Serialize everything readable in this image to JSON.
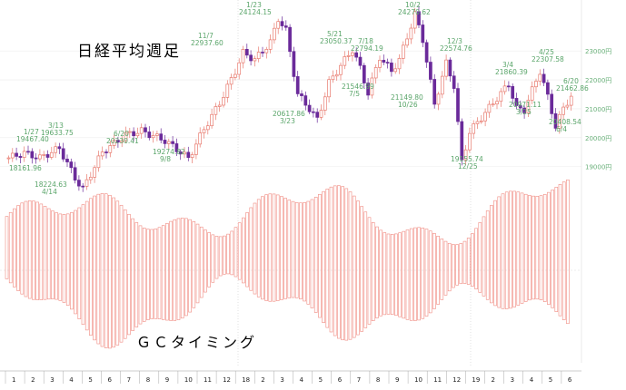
{
  "title": "日経平均週足",
  "subtitle": "ＧＣタイミング",
  "colors": {
    "up_candle": "#e87a6e",
    "down_candle": "#6a2a9a",
    "label": "#5aa56a",
    "osc_bar": "#f08a80",
    "grid": "#e8e8e8",
    "axis": "#999999"
  },
  "chart_data": {
    "type": "candlestick+bar",
    "title": "日経平均週足",
    "lower_panel_title": "ＧＣタイミング",
    "y_axis_right": {
      "ticks": [
        "23000円",
        "22000円",
        "21000円",
        "20000円",
        "19000円"
      ],
      "range": [
        18800,
        24700
      ]
    },
    "x_axis": {
      "ticks": [
        "1",
        "2",
        "3",
        "4",
        "5",
        "6",
        "7",
        "8",
        "9",
        "10",
        "11",
        "12",
        "18",
        "2",
        "3",
        "4",
        "5",
        "6",
        "7",
        "8",
        "9",
        "10",
        "11",
        "12",
        "19",
        "2",
        "3",
        "4",
        "5",
        "6"
      ],
      "year_markers": [
        "18",
        "19"
      ]
    },
    "annotations": [
      {
        "text": "1/27",
        "value": 19467.4,
        "label": "19467.40"
      },
      {
        "text": "3/13",
        "value": 19633.75,
        "label": "19633.75"
      },
      {
        "text": "18161.96",
        "value": 18161.96
      },
      {
        "text": "18224.63",
        "value": 18224.63,
        "date": "4/14"
      },
      {
        "text": "6/20",
        "value": 20230.41,
        "label": "20230.41"
      },
      {
        "text": "19274.82",
        "value": 19274.82,
        "date": "9/8"
      },
      {
        "text": "11/7",
        "value": 22937.6,
        "label": "22937.60"
      },
      {
        "text": "1/23",
        "value": 24124.15,
        "label": "24124.15"
      },
      {
        "text": "20617.86",
        "value": 20617.86,
        "date": "3/23"
      },
      {
        "text": "5/21",
        "value": 23050.37,
        "label": "23050.37"
      },
      {
        "text": "7/18",
        "value": 22794.19,
        "label": "22794.19"
      },
      {
        "text": "21546.99",
        "value": 21546.99,
        "date": "7/5"
      },
      {
        "text": "10/2",
        "value": 24270.62,
        "label": "24270.62"
      },
      {
        "text": "12/3",
        "value": 22574.76,
        "label": "22574.76"
      },
      {
        "text": "21149.80",
        "value": 21149.8,
        "date": "10/26"
      },
      {
        "text": "19155.74",
        "value": 19155.74,
        "date": "12/25"
      },
      {
        "text": "3/4",
        "value": 21860.39,
        "label": "21860.39"
      },
      {
        "text": "4/25",
        "value": 22307.58,
        "label": "22307.58"
      },
      {
        "text": "20971.11",
        "value": 20971.11,
        "date": "3/25"
      },
      {
        "text": "6/20",
        "value": 21462.86,
        "label": "21462.86"
      },
      {
        "text": "20408.54",
        "value": 20408.54,
        "date": "6/4"
      }
    ],
    "candles_count": 127,
    "oscillator": {
      "type": "bar",
      "description": "Red open-box bars symmetric around a center baseline, amplitude varies cyclically"
    }
  }
}
